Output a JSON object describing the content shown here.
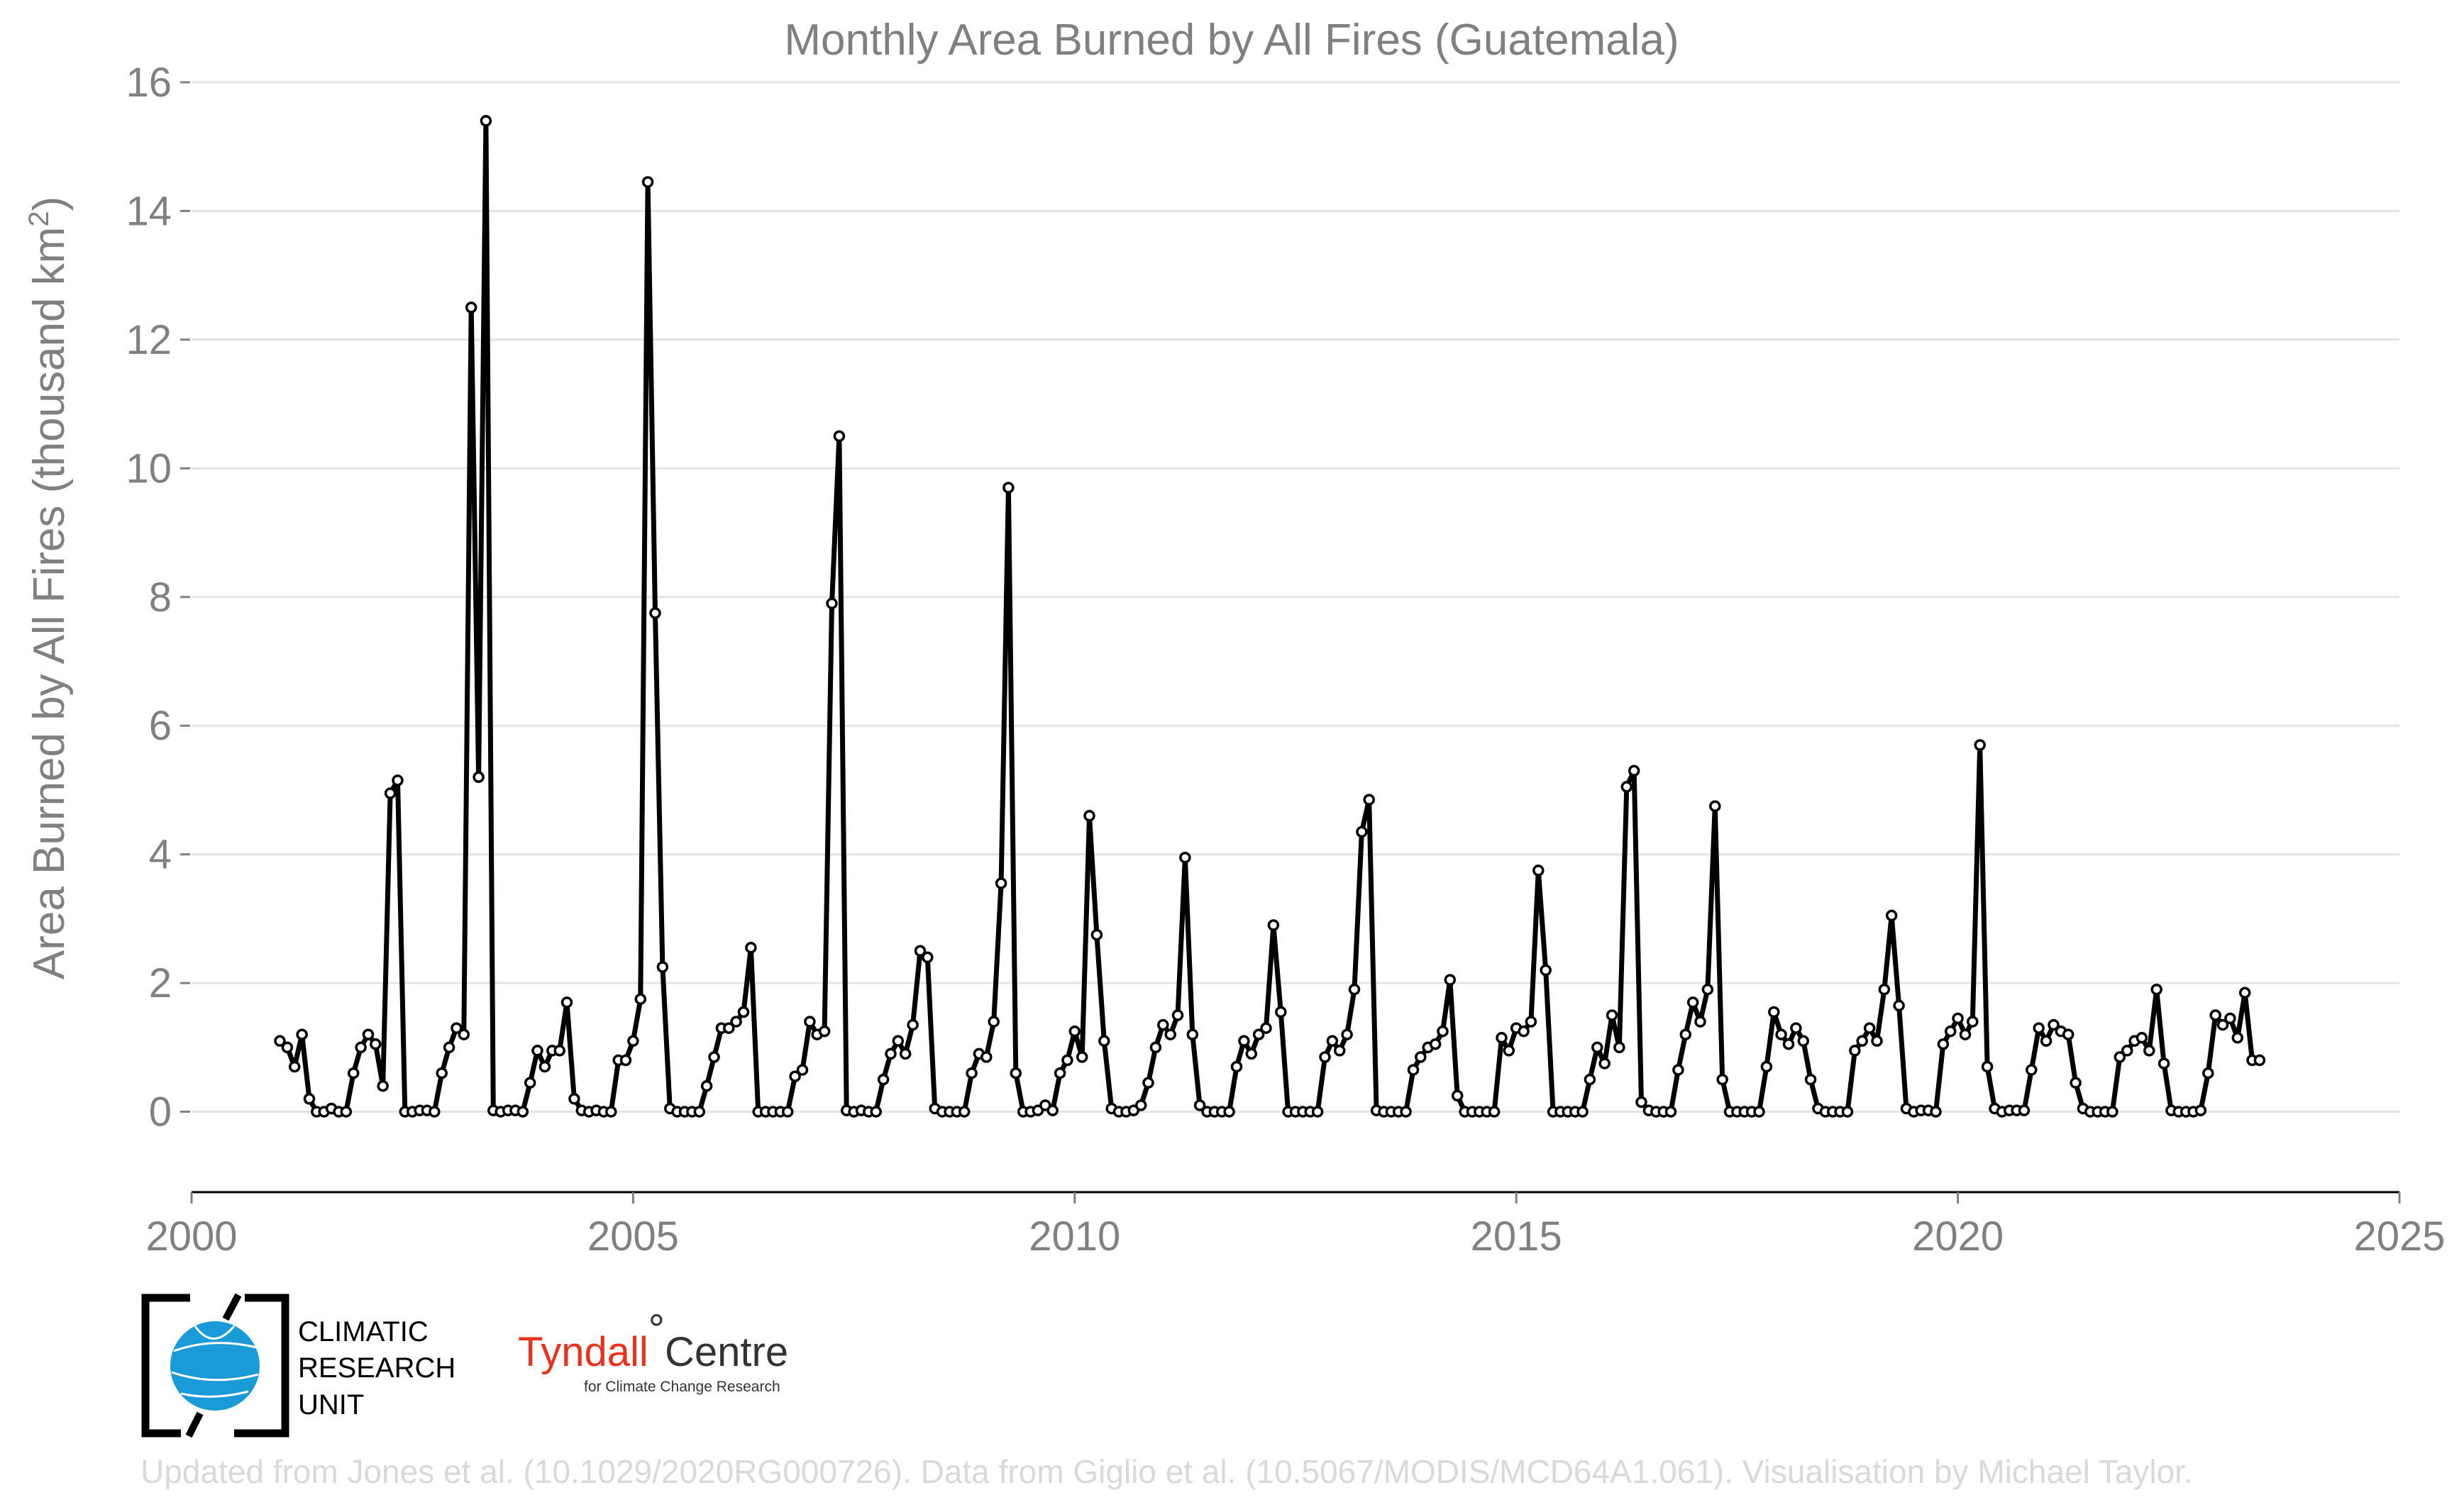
{
  "chart_data": {
    "type": "line",
    "title": "Monthly Area Burned by All Fires (Guatemala)",
    "ylabel_prefix": "Area Burned by All Fires (thousand km",
    "ylabel_sup": "2",
    "ylabel_suffix": ")",
    "xlabel": "",
    "xlim": [
      2000,
      2025
    ],
    "ylim": [
      -1.25,
      16
    ],
    "x_ticks": [
      2000,
      2005,
      2010,
      2015,
      2020,
      2025
    ],
    "y_ticks": [
      0,
      2,
      4,
      6,
      8,
      10,
      12,
      14,
      16
    ],
    "grid": "horizontal",
    "start_year": 2001,
    "start_month": 1,
    "marker": "open circle",
    "line_color": "#000000",
    "values": [
      1.1,
      1.0,
      0.7,
      1.2,
      0.2,
      0.0,
      0.0,
      0.05,
      0.0,
      0.0,
      0.6,
      1.0,
      1.2,
      1.05,
      0.4,
      4.95,
      5.15,
      0.0,
      0.0,
      0.02,
      0.02,
      0.0,
      0.6,
      1.0,
      1.3,
      1.2,
      12.5,
      5.2,
      15.4,
      0.02,
      0.0,
      0.02,
      0.02,
      0.0,
      0.45,
      0.95,
      0.7,
      0.95,
      0.95,
      1.7,
      0.2,
      0.02,
      0.0,
      0.02,
      0.0,
      0.0,
      0.8,
      0.8,
      1.1,
      1.75,
      14.45,
      7.75,
      2.25,
      0.05,
      0.0,
      0.0,
      0.0,
      0.0,
      0.4,
      0.85,
      1.3,
      1.3,
      1.4,
      1.55,
      2.55,
      0.0,
      0.0,
      0.0,
      0.0,
      0.0,
      0.55,
      0.65,
      1.4,
      1.2,
      1.25,
      7.9,
      10.5,
      0.02,
      0.0,
      0.02,
      0.0,
      0.0,
      0.5,
      0.9,
      1.1,
      0.9,
      1.35,
      2.5,
      2.4,
      0.05,
      0.0,
      0.0,
      0.0,
      0.0,
      0.6,
      0.9,
      0.85,
      1.4,
      3.55,
      9.7,
      0.6,
      0.0,
      0.0,
      0.02,
      0.1,
      0.02,
      0.6,
      0.8,
      1.25,
      0.85,
      4.6,
      2.75,
      1.1,
      0.05,
      0.0,
      0.0,
      0.02,
      0.1,
      0.45,
      1.0,
      1.35,
      1.2,
      1.5,
      3.95,
      1.2,
      0.1,
      0.0,
      0.0,
      0.0,
      0.0,
      0.7,
      1.1,
      0.9,
      1.2,
      1.3,
      2.9,
      1.55,
      0.0,
      0.0,
      0.0,
      0.0,
      0.0,
      0.85,
      1.1,
      0.95,
      1.2,
      1.9,
      4.35,
      4.85,
      0.02,
      0.0,
      0.0,
      0.0,
      0.0,
      0.65,
      0.85,
      1.0,
      1.05,
      1.25,
      2.05,
      0.25,
      0.0,
      0.0,
      0.0,
      0.0,
      0.0,
      1.15,
      0.95,
      1.3,
      1.25,
      1.4,
      3.75,
      2.2,
      0.0,
      0.0,
      0.0,
      0.0,
      0.0,
      0.5,
      1.0,
      0.75,
      1.5,
      1.0,
      5.05,
      5.3,
      0.15,
      0.02,
      0.0,
      0.0,
      0.0,
      0.65,
      1.2,
      1.7,
      1.4,
      1.9,
      4.75,
      0.5,
      0.0,
      0.0,
      0.0,
      0.0,
      0.0,
      0.7,
      1.55,
      1.2,
      1.05,
      1.3,
      1.1,
      0.5,
      0.05,
      0.0,
      0.0,
      0.0,
      0.0,
      0.95,
      1.1,
      1.3,
      1.1,
      1.9,
      3.05,
      1.65,
      0.05,
      0.0,
      0.02,
      0.02,
      0.0,
      1.05,
      1.25,
      1.45,
      1.2,
      1.4,
      5.7,
      0.7,
      0.05,
      0.0,
      0.02,
      0.02,
      0.02,
      0.65,
      1.3,
      1.1,
      1.35,
      1.25,
      1.2,
      0.45,
      0.05,
      0.0,
      0.0,
      0.0,
      0.0,
      0.85,
      0.95,
      1.1,
      1.15,
      0.95,
      1.9,
      0.75,
      0.02,
      0.0,
      0.0,
      0.0,
      0.02,
      0.6,
      1.5,
      1.35,
      1.45,
      1.15,
      1.85,
      0.8,
      0.8
    ]
  },
  "logos": {
    "cru_lines": [
      "CLIMATIC",
      "RESEARCH",
      "UNIT"
    ],
    "tyndall_red": "Tyndall",
    "tyndall_degree": "°",
    "tyndall_dark": "Centre",
    "tyndall_sub": "for Climate Change Research"
  },
  "credit": "Updated from Jones et al. (10.1029/2020RG000726). Data from Giglio et al. (10.5067/MODIS/MCD64A1.061). Visualisation by Michael Taylor.",
  "colors": {
    "text_gray": "#808080",
    "grid": "#e3e3e3",
    "series": "#000000",
    "tyndall_red": "#e8321e",
    "cru_blue": "#1a9ad6",
    "credit_gray": "#d9d9d9"
  }
}
